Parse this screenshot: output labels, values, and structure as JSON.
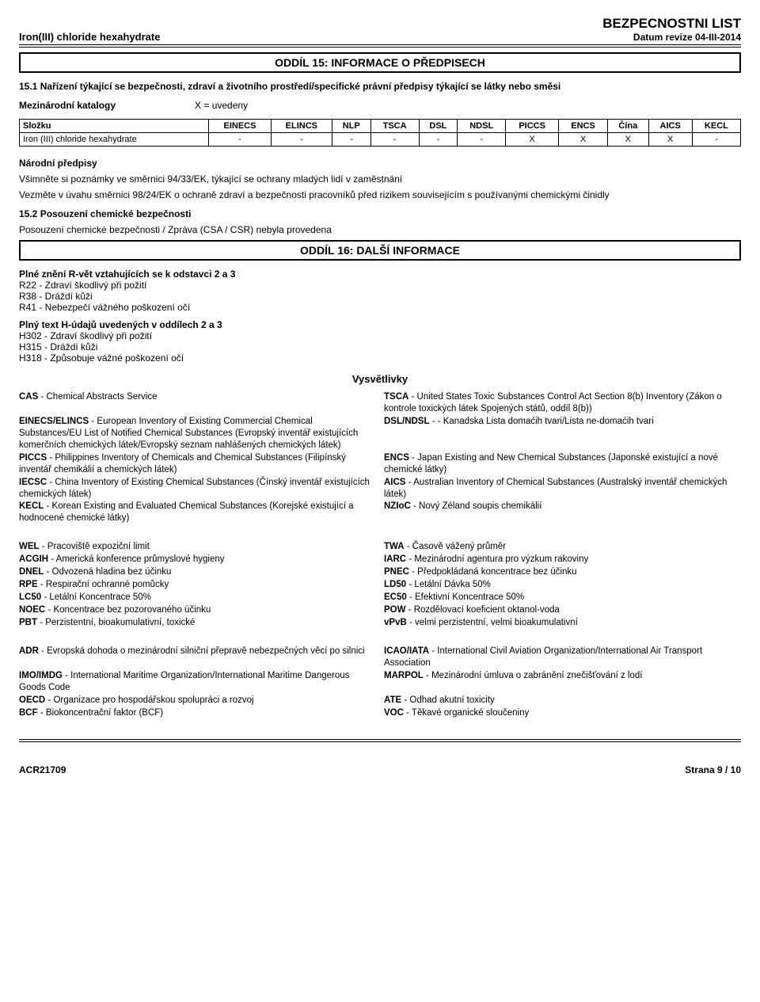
{
  "header": {
    "product": "Iron(III) chloride hexahydrate",
    "doc_title": "BEZPECNOSTNI LIST",
    "revision": "Datum revize 04-III-2014"
  },
  "section15": {
    "title": "ODDÍL 15: INFORMACE O PŘEDPISECH",
    "para1": "15.1 Nařízení týkající se bezpečnosti, zdraví a životního prostředí/specifické právní předpisy týkající se látky nebo směsi",
    "catalog_label": "Mezinárodní katalogy",
    "catalog_value": "X = uvedeny",
    "table": {
      "cols": [
        "Složku",
        "EINECS",
        "ELINCS",
        "NLP",
        "TSCA",
        "DSL",
        "NDSL",
        "PICCS",
        "ENCS",
        "Čína",
        "AICS",
        "KECL"
      ],
      "row_label": "Iron (III) chloride hexahydrate",
      "row_vals": [
        "-",
        "-",
        "-",
        "-",
        "-",
        "-",
        "X",
        "X",
        "X",
        "X",
        "-"
      ]
    },
    "nat_hdr": "Národní předpisy",
    "nat_p1": "Všimněte si poznámky ve směrnici 94/33/EK, týkající se ochrany mladých lidí v zaměstnání",
    "nat_p2": "Vezměte v úvahu směrnici 98/24/EK o ochraně zdraví a bezpečnosti pracovníků před rizikem souvisejícím s používanými chemickými činidly",
    "assess_hdr": "15.2 Posouzení chemické bezpečnosti",
    "assess_txt": "Posouzení chemické bezpečnosti / Zpráva (CSA / CSR) nebyla provedena"
  },
  "section16": {
    "title": "ODDÍL 16: DALŠÍ INFORMACE",
    "r_hdr": "Plné znění R-vět vztahujících se k odstavci 2 a 3",
    "r_lines": [
      "R22 - Zdraví škodlivý při požití",
      "R38 - Dráždí kůži",
      "R41 - Nebezpečí vážného poškození očí"
    ],
    "h_hdr": "Plný text H-údajů uvedených v oddílech 2 a 3",
    "h_lines": [
      "H302 - Zdraví škodlivý při požití",
      "H315 - Dráždí kůži",
      "H318 - Způsobuje vážné poškození očí"
    ],
    "gloss_title": "Vysvětlivky",
    "glossary1": [
      {
        "l": "CAS - Chemical Abstracts Service",
        "r": "TSCA - United States Toxic Substances Control Act Section 8(b) Inventory (Zákon o kontrole toxických látek Spojených států, oddíl 8(b))"
      },
      {
        "l": "EINECS/ELINCS - European Inventory of Existing Commercial Chemical Substances/EU List of Notified Chemical Substances (Evropský inventář existujících komerčních chemických látek/Evropský seznam nahlášených chemických látek)",
        "r": "DSL/NDSL -  - Kanadska Lista domaćih tvari/Lista ne-domaćih tvari"
      },
      {
        "l": "PICCS - Philippines Inventory of Chemicals and Chemical Substances (Filipínský inventář chemikálií a chemických látek)",
        "r": "ENCS - Japan Existing and New Chemical Substances (Japonské existující a nové chemické látky)"
      },
      {
        "l": "IECSC - China Inventory of Existing Chemical Substances (Čínský inventář existujících chemických látek)",
        "r": "AICS - Australian Inventory of Chemical Substances (Australský inventář chemických látek)"
      },
      {
        "l": "KECL - Korean Existing and Evaluated Chemical Substances (Korejské existující a hodnocené chemické látky)",
        "r": "NZIoC - Nový Zéland soupis chemikálií"
      }
    ],
    "glossary2": [
      {
        "l": "WEL - Pracoviště expoziční limit",
        "r": "TWA - Časově vážený průměr"
      },
      {
        "l": "ACGIH - Americká konference průmyslové hygieny",
        "r": "IARC - Mezinárodní agentura pro výzkum rakoviny"
      },
      {
        "l": "DNEL - Odvozená hladina bez účinku",
        "r": "PNEC - Předpokládaná koncentrace bez účinku"
      },
      {
        "l": "RPE - Respirační ochranné pomůcky",
        "r": "LD50 - Letální Dávka 50%"
      },
      {
        "l": "LC50 - Letální Koncentrace 50%",
        "r": "EC50 - Efektivní Koncentrace 50%"
      },
      {
        "l": "NOEC - Koncentrace bez pozorovaného účinku",
        "r": "POW - Rozdělovací koeficient oktanol-voda"
      },
      {
        "l": "PBT - Perzistentní, bioakumulativní, toxické",
        "r": "vPvB - velmi perzistentní, velmi bioakumulativní"
      }
    ],
    "glossary3": [
      {
        "l": "ADR - Evropská dohoda o mezinárodní silniční přepravě nebezpečných věcí po silnici",
        "r": "ICAO/IATA - International Civil Aviation Organization/International Air Transport Association"
      },
      {
        "l": "IMO/IMDG - International Maritime Organization/International Maritime Dangerous Goods Code",
        "r": "MARPOL - Mezinárodní úmluva o zabránění znečišťování z lodí"
      },
      {
        "l": "OECD - Organizace pro hospodářskou spolupráci a rozvoj",
        "r": "ATE - Odhad akutní toxicity"
      },
      {
        "l": "BCF - Biokoncentrační faktor (BCF)",
        "r": "VOC - Těkavé organické sloučeniny"
      }
    ]
  },
  "footer": {
    "left": "ACR21709",
    "right": "Strana  9 / 10"
  }
}
